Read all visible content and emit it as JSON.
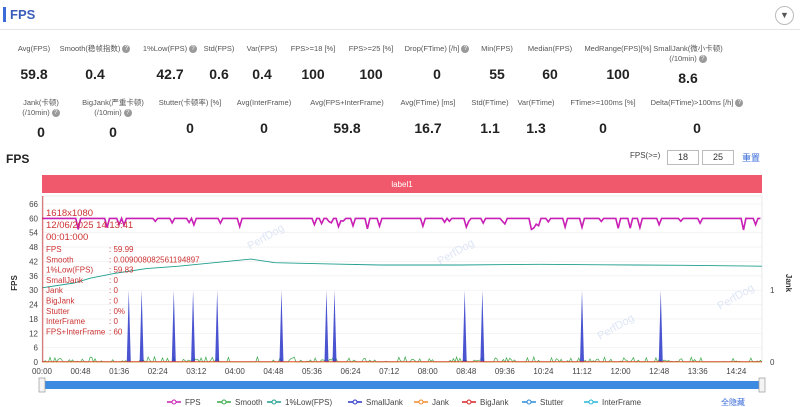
{
  "header": {
    "title": "FPS",
    "collapse_icon": "chevron-down-icon"
  },
  "stats": [
    {
      "label": "Avg(FPS)",
      "value": "59.8",
      "help": false
    },
    {
      "label": "Smooth(稳帧指数)",
      "value": "0.4",
      "help": true
    },
    {
      "label": "1%Low(FPS)",
      "value": "42.7",
      "help": true
    },
    {
      "label": "Std(FPS)",
      "value": "0.6",
      "help": false
    },
    {
      "label": "Var(FPS)",
      "value": "0.4",
      "help": false
    },
    {
      "label": "FPS>=18 [%]",
      "value": "100",
      "help": false
    },
    {
      "label": "FPS>=25 [%]",
      "value": "100",
      "help": false
    },
    {
      "label": "Drop(FTime) [/h]",
      "value": "0",
      "help": true
    },
    {
      "label": "Min(FPS)",
      "value": "55",
      "help": false
    },
    {
      "label": "Median(FPS)",
      "value": "60",
      "help": false
    },
    {
      "label": "MedRange(FPS)[%]",
      "value": "100",
      "help": false
    },
    {
      "label": "SmallJank(微小卡顿)|(/10min)",
      "value": "8.6",
      "help": true
    },
    {
      "label": "Jank(卡顿)|(/10min)",
      "value": "0",
      "help": true
    },
    {
      "label": "BigJank(严重卡顿)|(/10min)",
      "value": "0",
      "help": true
    },
    {
      "label": "Stutter(卡顿率) [%]",
      "value": "0",
      "help": false
    },
    {
      "label": "Avg(InterFrame)",
      "value": "0",
      "help": false
    },
    {
      "label": "Avg(FPS+InterFrame)",
      "value": "59.8",
      "help": false
    },
    {
      "label": "Avg(FTime) [ms]",
      "value": "16.7",
      "help": false
    },
    {
      "label": "Std(FTime)",
      "value": "1.1",
      "help": false
    },
    {
      "label": "Var(FTime)",
      "value": "1.3",
      "help": false
    },
    {
      "label": "FTime>=100ms [%]",
      "value": "0",
      "help": false
    },
    {
      "label": "Delta(FTime)>100ms [/h]",
      "value": "0",
      "help": true
    }
  ],
  "chart_section": {
    "title": "FPS",
    "fps_threshold_label": "FPS(>=)",
    "fps_threshold_1": "18",
    "fps_threshold_2": "25",
    "reset_label": "重置"
  },
  "chart_data": {
    "type": "line",
    "band_label": "label1",
    "y_left_label": "FPS",
    "y_right_label": "Jank",
    "y_left_ticks": [
      0,
      6,
      12,
      18,
      24,
      30,
      36,
      42,
      48,
      54,
      60,
      66
    ],
    "y_right_ticks": [
      0,
      1
    ],
    "x_ticks": [
      "00:00",
      "00:48",
      "01:36",
      "02:24",
      "03:12",
      "04:00",
      "04:48",
      "05:36",
      "06:24",
      "07:12",
      "08:00",
      "08:48",
      "09:36",
      "10:24",
      "11:12",
      "12:00",
      "12:48",
      "13:36",
      "14:24"
    ],
    "x_range_seconds": [
      0,
      896
    ],
    "fps_level": 60,
    "fps_min": 55,
    "smalljank_spike_seconds": [
      108,
      124,
      164,
      188,
      218,
      298,
      354,
      364,
      526,
      548,
      672,
      770
    ],
    "lowfps_curve": [
      [
        0,
        31
      ],
      [
        40,
        33
      ],
      [
        60,
        35
      ],
      [
        90,
        37
      ],
      [
        130,
        39
      ],
      [
        170,
        40
      ],
      [
        200,
        41
      ],
      [
        260,
        43
      ],
      [
        290,
        41.5
      ],
      [
        350,
        41
      ],
      [
        420,
        40.5
      ],
      [
        520,
        40.5
      ],
      [
        620,
        40.8
      ],
      [
        700,
        40.6
      ],
      [
        800,
        40.4
      ],
      [
        896,
        40
      ]
    ],
    "tooltip": {
      "resolution": "1618x1080",
      "date": "12/06/2025 14:13:41",
      "time": "00:01:000",
      "rows": [
        [
          "FPS",
          "59.99"
        ],
        [
          "Smooth",
          "0.009008082561194897"
        ],
        [
          "1%Low(FPS)",
          "59.83"
        ],
        [
          "SmallJank",
          "0"
        ],
        [
          "Jank",
          "0"
        ],
        [
          "BigJank",
          "0"
        ],
        [
          "Stutter",
          "0%"
        ],
        [
          "InterFrame",
          "0"
        ],
        [
          "FPS+InterFrame",
          "60"
        ]
      ]
    },
    "legend": [
      {
        "name": "FPS",
        "color": "#c81fb4"
      },
      {
        "name": "Smooth",
        "color": "#3aa84a"
      },
      {
        "name": "1%Low(FPS)",
        "color": "#1f9e8e"
      },
      {
        "name": "SmallJank",
        "color": "#2a36c8"
      },
      {
        "name": "Jank",
        "color": "#f08a2a"
      },
      {
        "name": "BigJank",
        "color": "#d82424"
      },
      {
        "name": "Stutter",
        "color": "#2a8ad8"
      },
      {
        "name": "InterFrame",
        "color": "#27b6d6"
      }
    ],
    "toggle_all_label": "全隐藏",
    "watermark": "PerfDog"
  }
}
